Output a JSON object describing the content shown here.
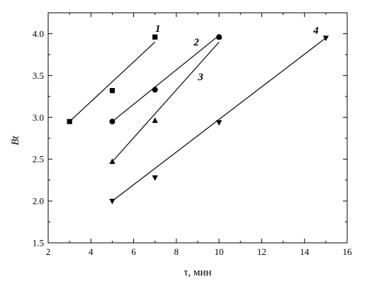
{
  "chart_data": {
    "type": "scatter",
    "title": "",
    "xlabel": "τ, мин",
    "ylabel": "Bt",
    "xlim": [
      2,
      16
    ],
    "ylim": [
      1.5,
      4.25
    ],
    "x_ticks": [
      "2",
      "4",
      "6",
      "8",
      "10",
      "12",
      "14",
      "16"
    ],
    "y_ticks": [
      "1.5",
      "2.0",
      "2.5",
      "3.0",
      "3.5",
      "4.0"
    ],
    "grid": false,
    "legend": "none",
    "series": [
      {
        "name": "1",
        "marker": "square",
        "x": [
          3,
          5,
          7
        ],
        "y": [
          2.95,
          3.32,
          3.96
        ],
        "fit_line": {
          "x": [
            3,
            7
          ],
          "y": [
            2.95,
            3.9
          ]
        }
      },
      {
        "name": "2",
        "marker": "circle",
        "x": [
          5,
          7,
          10
        ],
        "y": [
          2.95,
          3.33,
          3.96
        ],
        "fit_line": {
          "x": [
            5,
            10
          ],
          "y": [
            2.95,
            3.98
          ]
        }
      },
      {
        "name": "3",
        "marker": "triangle-up",
        "x": [
          5,
          7,
          10
        ],
        "y": [
          2.47,
          2.96,
          3.96
        ],
        "fit_line": {
          "x": [
            5,
            10
          ],
          "y": [
            2.47,
            3.9
          ]
        }
      },
      {
        "name": "4",
        "marker": "triangle-down",
        "x": [
          5,
          7,
          10,
          15
        ],
        "y": [
          2.0,
          2.28,
          2.94,
          3.95
        ],
        "fit_line": {
          "x": [
            5,
            15
          ],
          "y": [
            2.0,
            3.95
          ]
        }
      }
    ]
  }
}
